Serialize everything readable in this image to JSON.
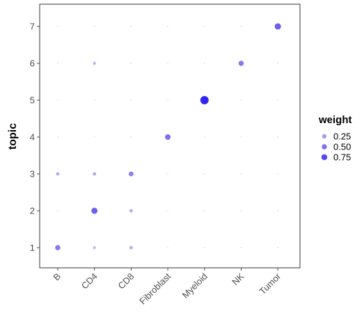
{
  "chart_data": {
    "type": "scatter",
    "title": "",
    "xlabel": "",
    "ylabel": "topic",
    "categories": [
      "B",
      "CD4",
      "CD8",
      "Fibroblast",
      "Myeloid",
      "NK",
      "Tumor"
    ],
    "y_ticks": [
      "1",
      "2",
      "3",
      "4",
      "5",
      "6",
      "7"
    ],
    "ylim": [
      0.35,
      7.6
    ],
    "grid": false,
    "colors": {
      "low": "#d3c4ea",
      "high": "#2a1ef2",
      "panel_border": "#333333",
      "tick": "#4d4d4d"
    },
    "legend": {
      "title": "weight",
      "position": "right",
      "entries": [
        {
          "label": "0.25",
          "value": 0.25
        },
        {
          "label": "0.50",
          "value": 0.5
        },
        {
          "label": "0.75",
          "value": 0.75
        }
      ]
    },
    "points": [
      {
        "x": "B",
        "topic": 1,
        "weight": 0.45
      },
      {
        "x": "B",
        "topic": 2,
        "weight": 0.0
      },
      {
        "x": "B",
        "topic": 3,
        "weight": 0.15
      },
      {
        "x": "B",
        "topic": 4,
        "weight": 0.0
      },
      {
        "x": "B",
        "topic": 5,
        "weight": 0.0
      },
      {
        "x": "B",
        "topic": 6,
        "weight": 0.0
      },
      {
        "x": "B",
        "topic": 7,
        "weight": 0.0
      },
      {
        "x": "CD4",
        "topic": 1,
        "weight": 0.08
      },
      {
        "x": "CD4",
        "topic": 2,
        "weight": 0.6
      },
      {
        "x": "CD4",
        "topic": 3,
        "weight": 0.15
      },
      {
        "x": "CD4",
        "topic": 4,
        "weight": 0.0
      },
      {
        "x": "CD4",
        "topic": 5,
        "weight": 0.0
      },
      {
        "x": "CD4",
        "topic": 6,
        "weight": 0.1
      },
      {
        "x": "CD4",
        "topic": 7,
        "weight": 0.0
      },
      {
        "x": "CD8",
        "topic": 1,
        "weight": 0.15
      },
      {
        "x": "CD8",
        "topic": 2,
        "weight": 0.15
      },
      {
        "x": "CD8",
        "topic": 3,
        "weight": 0.4
      },
      {
        "x": "CD8",
        "topic": 4,
        "weight": 0.0
      },
      {
        "x": "CD8",
        "topic": 5,
        "weight": 0.0
      },
      {
        "x": "CD8",
        "topic": 6,
        "weight": 0.0
      },
      {
        "x": "CD8",
        "topic": 7,
        "weight": 0.0
      },
      {
        "x": "Fibroblast",
        "topic": 1,
        "weight": 0.0
      },
      {
        "x": "Fibroblast",
        "topic": 2,
        "weight": 0.0
      },
      {
        "x": "Fibroblast",
        "topic": 3,
        "weight": 0.0
      },
      {
        "x": "Fibroblast",
        "topic": 4,
        "weight": 0.5
      },
      {
        "x": "Fibroblast",
        "topic": 5,
        "weight": 0.0
      },
      {
        "x": "Fibroblast",
        "topic": 6,
        "weight": 0.0
      },
      {
        "x": "Fibroblast",
        "topic": 7,
        "weight": 0.0
      },
      {
        "x": "Myeloid",
        "topic": 1,
        "weight": 0.0
      },
      {
        "x": "Myeloid",
        "topic": 2,
        "weight": 0.0
      },
      {
        "x": "Myeloid",
        "topic": 3,
        "weight": 0.0
      },
      {
        "x": "Myeloid",
        "topic": 4,
        "weight": 0.0
      },
      {
        "x": "Myeloid",
        "topic": 5,
        "weight": 0.95
      },
      {
        "x": "Myeloid",
        "topic": 6,
        "weight": 0.0
      },
      {
        "x": "Myeloid",
        "topic": 7,
        "weight": 0.0
      },
      {
        "x": "NK",
        "topic": 1,
        "weight": 0.0
      },
      {
        "x": "NK",
        "topic": 2,
        "weight": 0.0
      },
      {
        "x": "NK",
        "topic": 3,
        "weight": 0.0
      },
      {
        "x": "NK",
        "topic": 4,
        "weight": 0.0
      },
      {
        "x": "NK",
        "topic": 5,
        "weight": 0.0
      },
      {
        "x": "NK",
        "topic": 6,
        "weight": 0.45
      },
      {
        "x": "NK",
        "topic": 7,
        "weight": 0.0
      },
      {
        "x": "Tumor",
        "topic": 1,
        "weight": 0.0
      },
      {
        "x": "Tumor",
        "topic": 2,
        "weight": 0.0
      },
      {
        "x": "Tumor",
        "topic": 3,
        "weight": 0.0
      },
      {
        "x": "Tumor",
        "topic": 4,
        "weight": 0.0
      },
      {
        "x": "Tumor",
        "topic": 5,
        "weight": 0.0
      },
      {
        "x": "Tumor",
        "topic": 6,
        "weight": 0.0
      },
      {
        "x": "Tumor",
        "topic": 7,
        "weight": 0.62
      }
    ]
  }
}
